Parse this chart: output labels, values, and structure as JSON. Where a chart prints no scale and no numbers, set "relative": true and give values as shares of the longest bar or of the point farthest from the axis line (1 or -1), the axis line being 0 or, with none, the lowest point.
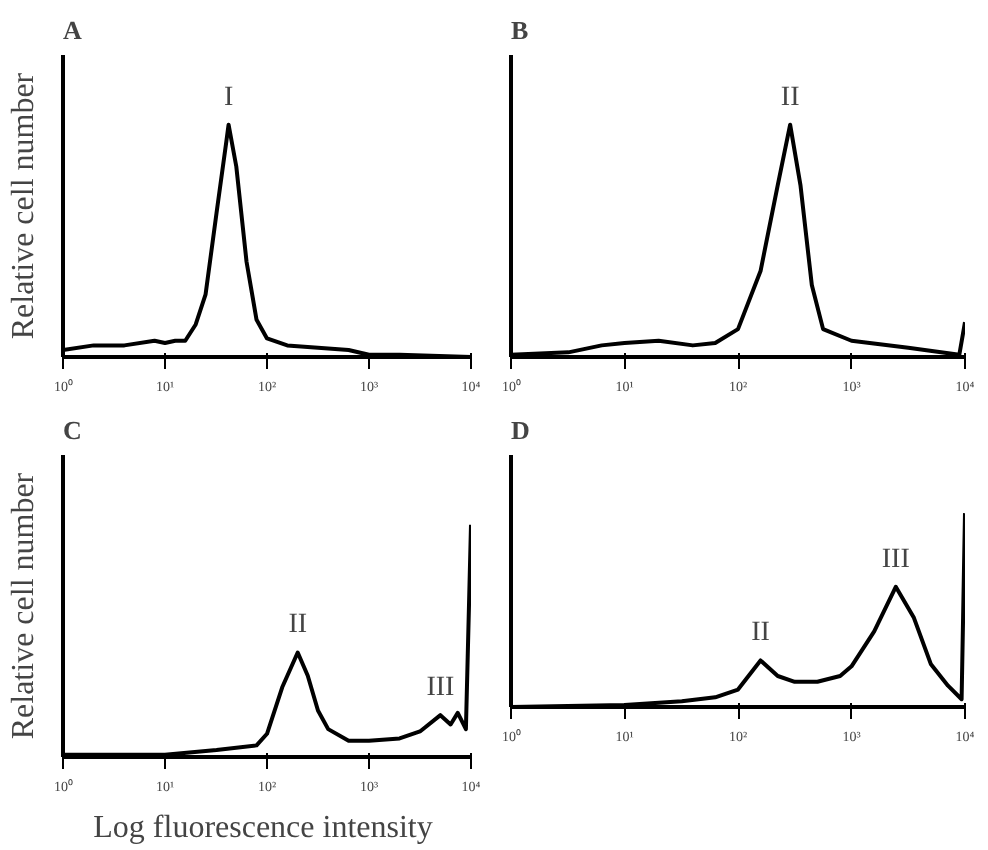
{
  "chart_data": [
    {
      "type": "line",
      "title": "A",
      "ylabel": "Relative cell number",
      "relative": true,
      "log": "x",
      "xlim": [
        1,
        10000
      ],
      "xticks": [
        {
          "value": 1,
          "label": "10⁰"
        },
        {
          "value": 10,
          "label": "10¹"
        },
        {
          "value": 100,
          "label": "10²"
        },
        {
          "value": 1000,
          "label": "10³"
        },
        {
          "value": 10000,
          "label": "10⁴"
        }
      ],
      "grid": false,
      "series": [
        {
          "color": "#000000",
          "x": [
            1,
            2,
            4,
            7.9,
            10,
            12.6,
            15.8,
            20,
            25,
            32,
            40,
            42,
            50,
            63,
            79,
            100,
            158,
            316,
            631,
            1000,
            1995,
            10000
          ],
          "values": [
            0.03,
            0.05,
            0.05,
            0.07,
            0.06,
            0.07,
            0.07,
            0.14,
            0.27,
            0.62,
            0.93,
            1,
            0.82,
            0.41,
            0.16,
            0.08,
            0.05,
            0.04,
            0.03,
            0.01,
            0.01,
            0
          ]
        }
      ],
      "annotations": [
        {
          "text": "I",
          "x": 42,
          "y": 1
        }
      ]
    },
    {
      "type": "line",
      "title": "B",
      "relative": true,
      "log": "x",
      "xlim": [
        1,
        10000
      ],
      "xticks": [
        {
          "value": 1,
          "label": "10⁰"
        },
        {
          "value": 10,
          "label": "10¹"
        },
        {
          "value": 100,
          "label": "10²"
        },
        {
          "value": 1000,
          "label": "10³"
        },
        {
          "value": 10000,
          "label": "10⁴"
        }
      ],
      "grid": false,
      "series": [
        {
          "color": "#000000",
          "x": [
            1,
            3.2,
            6.3,
            10,
            20,
            40,
            63,
            100,
            158,
            224,
            288,
            355,
            447,
            562,
            1000,
            3162,
            8913,
            10000
          ],
          "values": [
            0.01,
            0.02,
            0.05,
            0.06,
            0.07,
            0.05,
            0.06,
            0.12,
            0.37,
            0.74,
            1,
            0.74,
            0.31,
            0.12,
            0.07,
            0.04,
            0.01,
            0.15
          ]
        }
      ],
      "annotations": [
        {
          "text": "II",
          "x": 288,
          "y": 1
        }
      ]
    },
    {
      "type": "line",
      "title": "C",
      "ylabel": "Relative cell number",
      "xlabel": "Log  fluorescence intensity",
      "relative": true,
      "log": "x",
      "xlim": [
        1,
        10000
      ],
      "xticks": [
        {
          "value": 1,
          "label": "10⁰"
        },
        {
          "value": 10,
          "label": "10¹"
        },
        {
          "value": 100,
          "label": "10²"
        },
        {
          "value": 1000,
          "label": "10³"
        },
        {
          "value": 10000,
          "label": "10⁴"
        }
      ],
      "grid": false,
      "series": [
        {
          "color": "#000000",
          "x": [
            1,
            10,
            32,
            79,
            100,
            141,
            200,
            251,
            316,
            398,
            631,
            1000,
            1995,
            3162,
            5012,
            6310,
            7413,
            8913,
            10000
          ],
          "values": [
            0.01,
            0.01,
            0.03,
            0.05,
            0.1,
            0.3,
            0.45,
            0.35,
            0.2,
            0.12,
            0.07,
            0.07,
            0.08,
            0.11,
            0.18,
            0.14,
            0.19,
            0.12,
            1
          ]
        }
      ],
      "annotations": [
        {
          "text": "II",
          "x": 200,
          "y": 0.45
        },
        {
          "text": "III",
          "x": 5012,
          "y": 0.18
        }
      ]
    },
    {
      "type": "line",
      "title": "D",
      "relative": true,
      "log": "x",
      "xlim": [
        1,
        10000
      ],
      "xticks": [
        {
          "value": 1,
          "label": "10⁰"
        },
        {
          "value": 10,
          "label": "10¹"
        },
        {
          "value": 100,
          "label": "10²"
        },
        {
          "value": 1000,
          "label": "10³"
        },
        {
          "value": 10000,
          "label": "10⁴"
        }
      ],
      "grid": false,
      "series": [
        {
          "color": "#000000",
          "x": [
            1,
            10,
            32,
            63,
            100,
            158,
            224,
            316,
            501,
            794,
            1000,
            1585,
            2455,
            3548,
            5012,
            7079,
            9333,
            10000
          ],
          "values": [
            0,
            0.01,
            0.03,
            0.05,
            0.09,
            0.24,
            0.16,
            0.13,
            0.13,
            0.16,
            0.21,
            0.39,
            0.62,
            0.46,
            0.22,
            0.11,
            0.04,
            1
          ]
        }
      ],
      "annotations": [
        {
          "text": "II",
          "x": 158,
          "y": 0.24
        },
        {
          "text": "III",
          "x": 2455,
          "y": 0.62
        }
      ]
    }
  ]
}
